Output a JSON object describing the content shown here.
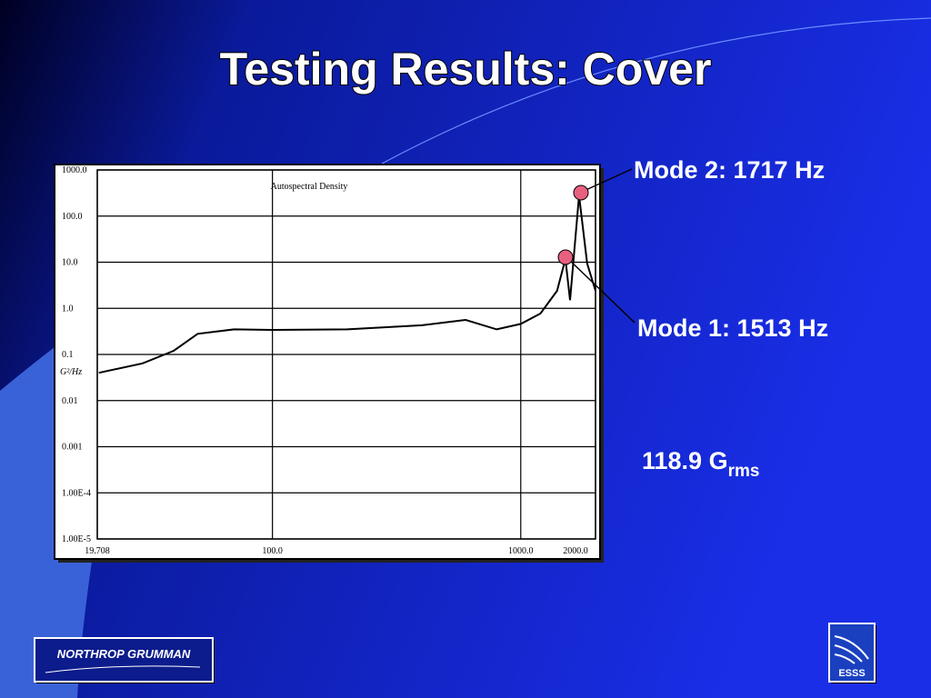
{
  "slide": {
    "title": "Testing Results: Cover",
    "annotations": [
      "Mode 2: 1717 Hz",
      "Mode 1: 1513 Hz"
    ],
    "grms": {
      "value": "118.9 G",
      "subscript": "rms"
    },
    "logos": [
      "NORTHROP GRUMMAN",
      "ESSS"
    ]
  },
  "chart_data": {
    "type": "line",
    "title": "Autospectral Density",
    "y_label": "G²/Hz",
    "x": [
      20,
      30,
      40,
      50,
      70,
      100,
      200,
      400,
      600,
      800,
      1000,
      1200,
      1400,
      1513,
      1580,
      1717,
      1850,
      2000
    ],
    "series": [
      {
        "name": "Autospectral Density",
        "color": "#000000",
        "values": [
          0.04,
          0.064,
          0.12,
          0.28,
          0.35,
          0.34,
          0.35,
          0.43,
          0.56,
          0.35,
          0.46,
          0.77,
          2.4,
          11.7,
          1.5,
          280,
          9.4,
          2.4
        ]
      }
    ],
    "xscale": "log",
    "yscale": "log",
    "xlim": [
      19.708,
      2000
    ],
    "xticks": [
      {
        "value": 19.708,
        "label": "19.708"
      },
      {
        "value": 100,
        "label": "100.0"
      },
      {
        "value": 1000,
        "label": "1000.0"
      },
      {
        "value": 2000,
        "label": "2000.0"
      }
    ],
    "ylim": [
      1e-05,
      1000
    ],
    "yticks": [
      {
        "value": 1000,
        "label": "1000.0"
      },
      {
        "value": 100,
        "label": "100.0"
      },
      {
        "value": 10,
        "label": "10.0"
      },
      {
        "value": 1,
        "label": "1.0"
      },
      0.1,
      0.01,
      0.001,
      {
        "value": 0.0001,
        "label": "1.00E-4"
      },
      {
        "value": 1e-05,
        "label": "1.00E-5"
      }
    ],
    "grid": true
  }
}
